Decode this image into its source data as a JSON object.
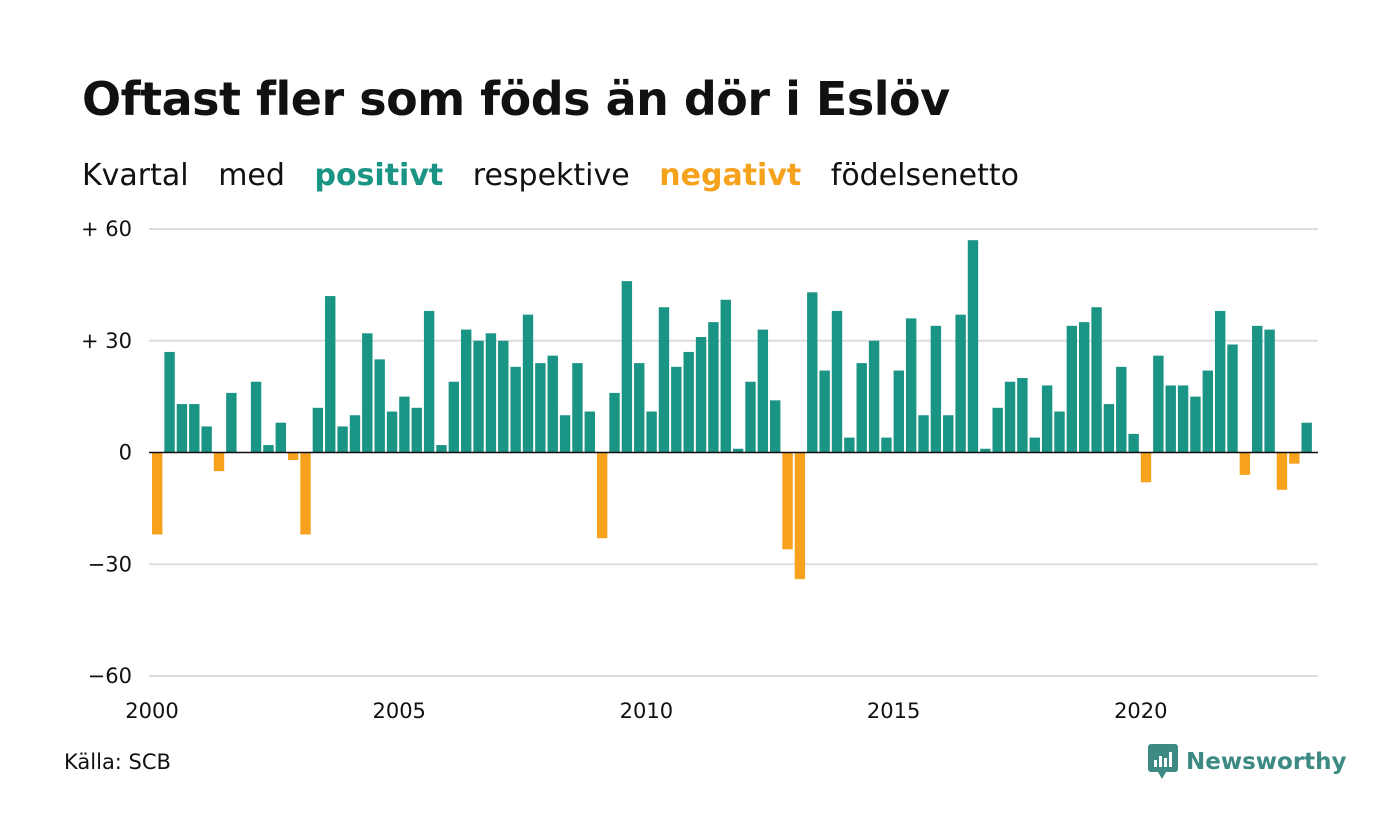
{
  "title": "Oftast fler som föds än dör i Eslöv",
  "subtitle": {
    "w1": "Kvartal",
    "w2": "med",
    "positive": "positivt",
    "w3": "respektive",
    "negative": "negativt",
    "w4": "födelsenetto"
  },
  "source": "Källa: SCB",
  "brand": {
    "name": "Newsworthy",
    "icon": "newsworthy-logo-icon"
  },
  "colors": {
    "positive": "#1a9485",
    "negative": "#f6a21d",
    "grid": "#dddddd",
    "brand": "#3c8a83"
  },
  "chart_data": {
    "type": "bar",
    "start_year": 2000,
    "period": "quarter",
    "values": [
      -22,
      27,
      13,
      13,
      7,
      -5,
      16,
      0,
      19,
      2,
      8,
      -2,
      -22,
      12,
      42,
      7,
      10,
      32,
      25,
      11,
      15,
      12,
      38,
      2,
      19,
      33,
      30,
      32,
      30,
      23,
      37,
      24,
      26,
      10,
      24,
      11,
      -23,
      16,
      46,
      24,
      11,
      39,
      23,
      27,
      31,
      35,
      41,
      1,
      19,
      33,
      14,
      -26,
      -34,
      43,
      22,
      38,
      4,
      24,
      30,
      4,
      22,
      36,
      10,
      34,
      10,
      37,
      57,
      1,
      12,
      19,
      20,
      4,
      18,
      11,
      34,
      35,
      39,
      13,
      23,
      5,
      -8,
      26,
      18,
      18,
      15,
      22,
      38,
      29,
      -6,
      34,
      33,
      -10,
      -3,
      8
    ],
    "ylim": [
      -60,
      60
    ],
    "yticks": [
      60,
      30,
      0,
      -30,
      -60
    ],
    "ytick_labels": [
      "+ 60",
      "+ 30",
      "0",
      "−30",
      "−60"
    ],
    "xticks": [
      2000,
      2005,
      2010,
      2015,
      2020
    ],
    "xtick_labels": [
      "2000",
      "2005",
      "2010",
      "2015",
      "2020"
    ],
    "grid": true
  }
}
